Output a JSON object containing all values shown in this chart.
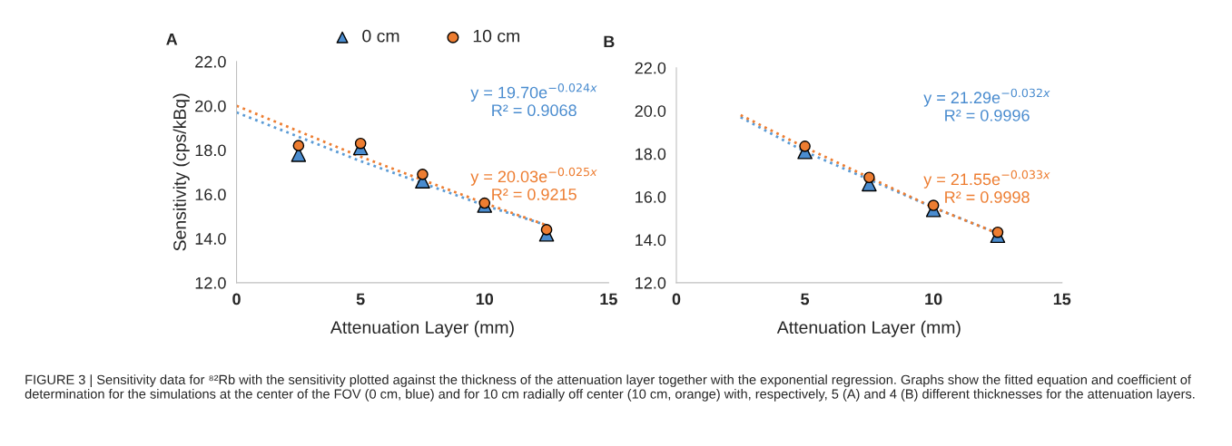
{
  "chart_data": [
    {
      "type": "scatter",
      "title": "A",
      "xlabel": "Attenuation Layer (mm)",
      "ylabel": "Sensitivity (cps/kBq)",
      "xlim": [
        0,
        15
      ],
      "xticks": [
        0,
        5,
        10,
        15
      ],
      "ylim": [
        12,
        22
      ],
      "yticks": [
        {
          "value": 12,
          "label": "12.0"
        },
        {
          "value": 14,
          "label": "14.0"
        },
        {
          "value": 16,
          "label": "16.0"
        },
        {
          "value": 18,
          "label": "18.0"
        },
        {
          "value": 20,
          "label": "20.0"
        },
        {
          "value": 22,
          "label": "22.0"
        }
      ],
      "grid": false,
      "legend": "top",
      "series": [
        {
          "name": "0 cm",
          "color": "#4a8ccf",
          "marker": "triangle",
          "x": [
            2.5,
            5,
            7.5,
            10,
            12.5
          ],
          "values": [
            17.8,
            18.1,
            16.6,
            15.5,
            14.2
          ]
        },
        {
          "name": "10 cm",
          "color": "#ed7d31",
          "marker": "circle",
          "x": [
            2.5,
            5,
            7.5,
            10,
            12.5
          ],
          "values": [
            18.2,
            18.3,
            16.9,
            15.6,
            14.4
          ]
        },
        {
          "type": "line",
          "color": "#5b9bd5",
          "line_style": "dotted",
          "marker": "none",
          "x": [
            0,
            5,
            10,
            12.5
          ],
          "values": [
            19.7,
            17.5,
            15.5,
            14.6
          ]
        },
        {
          "type": "line",
          "color": "#ed7d31",
          "line_style": "dotted",
          "marker": "none",
          "x": [
            0,
            5,
            10,
            12.5
          ],
          "values": [
            20.0,
            17.7,
            15.6,
            14.6
          ]
        }
      ],
      "annotations": [
        "y = 19.70e$^{−0.024x}$\nR² = 0.9068",
        "y = 20.03e$^{−0.025x}$\nR² = 0.9215",
        "FIGURE 3 | Sensitivity data for ⁸²Rb with the sensitivity plotted against the thickness of the attenuation layer together with the exponential regression. Graphs show the fitted equation and coefficient of determination for the simulations at the center of the FOV (0 cm, blue) and for 10 cm radially off center (10 cm, orange) with, respectively, 5 (A) and 4 (B) different thicknesses for the attenuation layers."
      ]
    },
    {
      "type": "scatter",
      "title": "B",
      "xlabel": "Attenuation Layer (mm)",
      "xlim": [
        0,
        15
      ],
      "xticks": [
        0,
        5,
        10,
        15
      ],
      "ylim": [
        12,
        22
      ],
      "yticks": [
        {
          "value": 12,
          "label": "12.0"
        },
        {
          "value": 14,
          "label": "14.0"
        },
        {
          "value": 16,
          "label": "16.0"
        },
        {
          "value": 18,
          "label": "18.0"
        },
        {
          "value": 20,
          "label": "20.0"
        },
        {
          "value": 22,
          "label": "22.0"
        }
      ],
      "grid": false,
      "series": [
        {
          "color": "#4a8ccf",
          "marker": "triangle",
          "x": [
            5,
            7.5,
            10,
            12.5
          ],
          "values": [
            18.1,
            16.6,
            15.4,
            14.2
          ]
        },
        {
          "color": "#ed7d31",
          "marker": "circle",
          "x": [
            5,
            7.5,
            10,
            12.5
          ],
          "values": [
            18.35,
            16.9,
            15.6,
            14.35
          ]
        },
        {
          "type": "line",
          "color": "#5b9bd5",
          "line_style": "dotted",
          "marker": "none",
          "x": [
            2.5,
            5,
            10,
            12.5
          ],
          "values": [
            19.7,
            18.1,
            15.5,
            14.3
          ]
        },
        {
          "type": "line",
          "color": "#ed7d31",
          "line_style": "dotted",
          "marker": "none",
          "x": [
            2.5,
            5,
            10,
            12.5
          ],
          "values": [
            19.8,
            18.3,
            15.5,
            14.3
          ]
        }
      ],
      "annotations": [
        "y = 21.29e$^{−0.032x}$\nR² = 0.9996",
        "y = 21.55e$^{−0.033x}$\nR² = 0.9998"
      ]
    }
  ]
}
